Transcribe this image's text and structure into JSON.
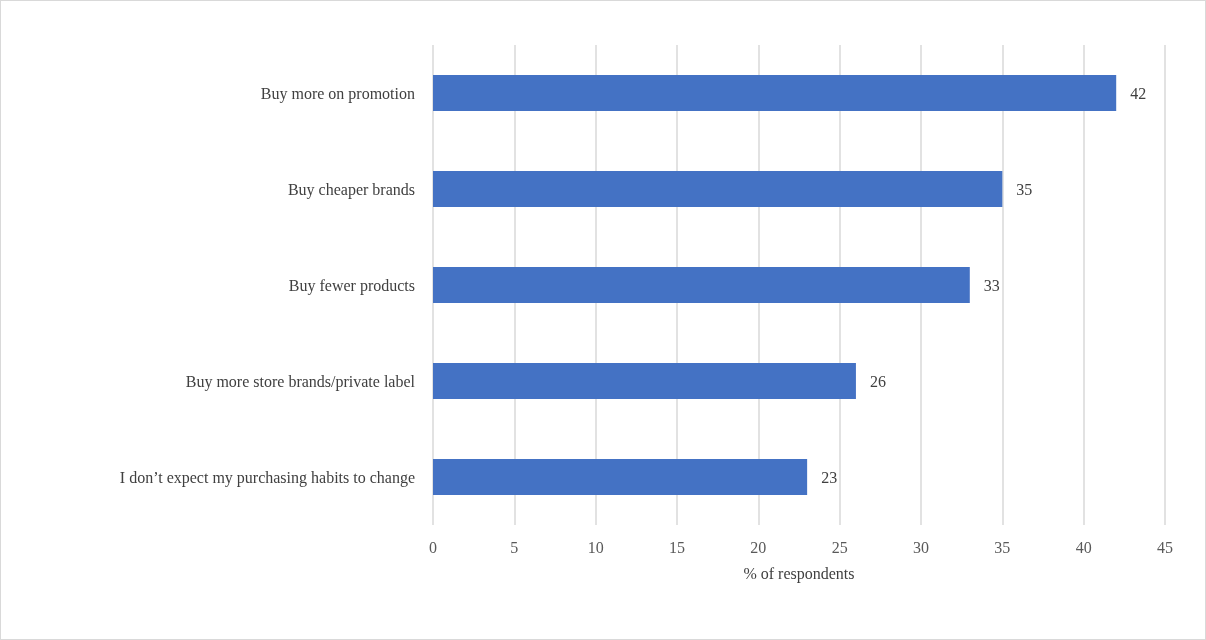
{
  "chart_data": {
    "type": "bar",
    "orientation": "horizontal",
    "xlabel": "% of respondents",
    "categories": [
      "Buy more on promotion",
      "Buy cheaper brands",
      "Buy fewer products",
      "Buy more store brands/private label",
      "I don’t expect my purchasing habits to change"
    ],
    "values": [
      42,
      35,
      33,
      26,
      23
    ],
    "color": "#4472c4",
    "xlim": [
      0,
      45
    ],
    "xticks": [
      0,
      5,
      10,
      15,
      20,
      25,
      30,
      35,
      40,
      45
    ],
    "grid": "x",
    "data_labels": true
  }
}
